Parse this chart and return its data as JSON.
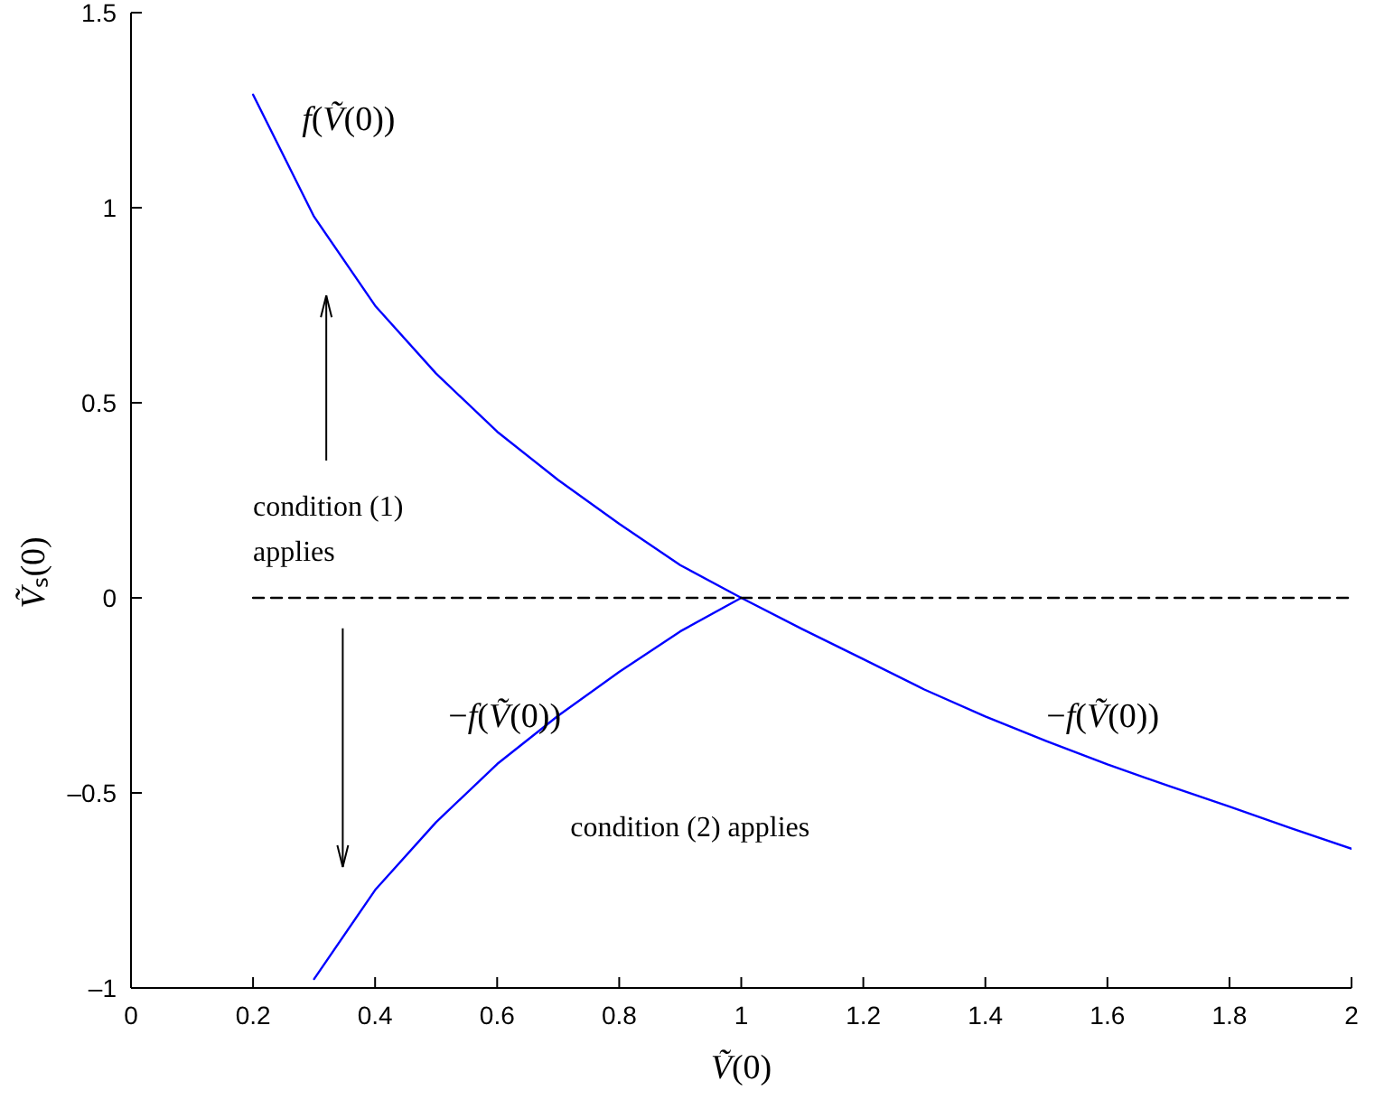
{
  "chart_data": {
    "type": "line",
    "xlabel": "Ṽ(0)",
    "ylabel": "Ṽₛ(0)",
    "xlim": [
      0,
      2
    ],
    "xticks": [
      0,
      0.2,
      0.4,
      0.6,
      0.8,
      1,
      1.2,
      1.4,
      1.6,
      1.8,
      2
    ],
    "ylim": [
      -1,
      1.5
    ],
    "yticks": [
      {
        "value": -1,
        "label": "–1"
      },
      {
        "value": -0.5,
        "label": "–0.5"
      },
      0,
      0.5,
      1,
      1.5
    ],
    "grid": false,
    "marker": "none",
    "series": [
      {
        "color": "#0000ff",
        "line_style": "solid",
        "x": [
          0.2,
          0.3,
          0.4,
          0.5,
          0.6,
          0.7,
          0.8,
          0.9,
          1,
          1.1,
          1.2,
          1.3,
          1.4,
          1.5,
          1.6,
          1.7,
          1.8,
          1.9,
          2
        ],
        "values": [
          1.29,
          0.977,
          0.749,
          0.575,
          0.426,
          0.302,
          0.19,
          0.084,
          0,
          -0.08,
          -0.157,
          -0.235,
          -0.304,
          -0.367,
          -0.427,
          -0.482,
          -0.535,
          -0.59,
          -0.643
        ]
      },
      {
        "color": "#0000ff",
        "line_style": "solid",
        "x": [
          0.3,
          0.4,
          0.5,
          0.6,
          0.7,
          0.8,
          0.9,
          1
        ],
        "values": [
          -0.977,
          -0.749,
          -0.575,
          -0.426,
          -0.302,
          -0.19,
          -0.086,
          0
        ]
      },
      {
        "color": "#000000",
        "line_style": "dashed",
        "x": [
          0.2,
          2
        ],
        "values": [
          0,
          0
        ]
      }
    ],
    "annotations": [
      "f(Ṽ(0))",
      "−f(Ṽ(0))",
      "−f(Ṽ(0))",
      "condition (1) applies",
      "condition (2) applies"
    ]
  }
}
